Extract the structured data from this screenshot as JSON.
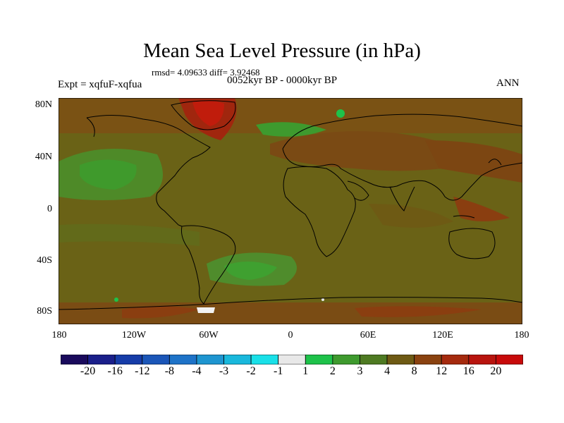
{
  "title": "Mean Sea Level Pressure (in hPa)",
  "stats": "rmsd= 4.09633 diff= 3.92468",
  "experiment": "Expt = xqfuF-xqfua",
  "period": "0052kyr BP - 0000kyr BP",
  "season": "ANN",
  "map": {
    "projection": "cylindrical equidistant",
    "lat_ticks": [
      "80N",
      "40N",
      "0",
      "40S",
      "80S"
    ],
    "lon_ticks": [
      "180",
      "120W",
      "60W",
      "0",
      "60E",
      "120E",
      "180"
    ]
  },
  "colorbar": {
    "labels": [
      "-20",
      "-16",
      "-12",
      "-8",
      "-4",
      "-3",
      "-2",
      "-1",
      "1",
      "2",
      "3",
      "4",
      "8",
      "12",
      "16",
      "20"
    ],
    "colors": [
      "#1a0a5c",
      "#1a1f8a",
      "#163ca8",
      "#1b56b8",
      "#1e73c8",
      "#1e95d0",
      "#19b8dc",
      "#19e0e8",
      "#e8e8e8",
      "#1ec24a",
      "#3e9a2e",
      "#4e7a22",
      "#6e5a14",
      "#8a4210",
      "#a52a0e",
      "#b8140e",
      "#c80a0a"
    ]
  }
}
